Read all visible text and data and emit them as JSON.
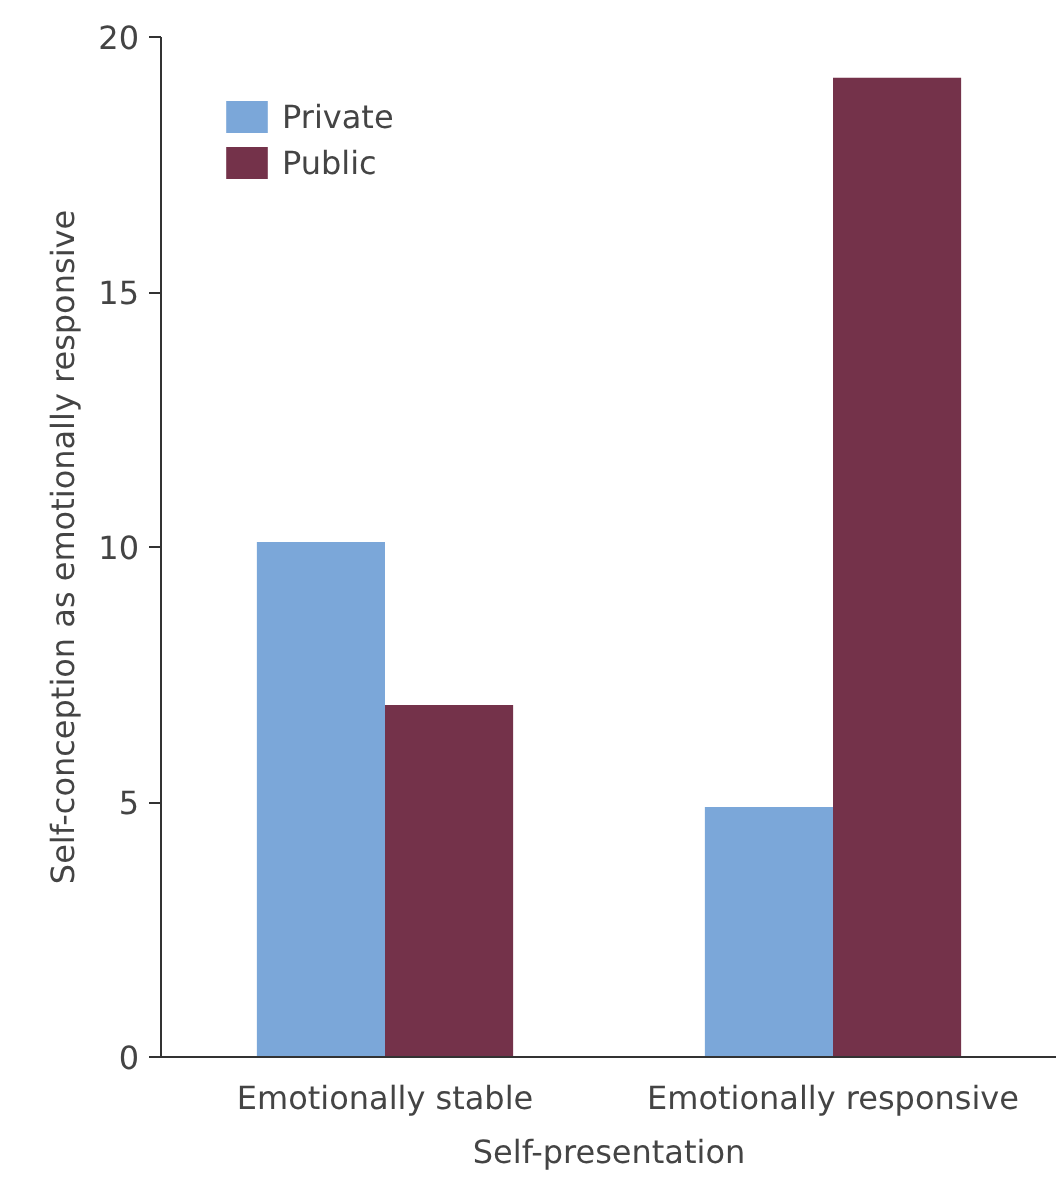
{
  "chart_data": {
    "type": "bar",
    "xlabel": "Self-presentation",
    "ylabel": "Self-conception as emotionally responsive",
    "categories": [
      "Emotionally stable",
      "Emotionally responsive"
    ],
    "series": [
      {
        "name": "Private",
        "color": "#7ba7d9",
        "values": [
          10.1,
          4.9
        ]
      },
      {
        "name": "Public",
        "color": "#74324a",
        "values": [
          6.9,
          19.2
        ]
      }
    ],
    "ylim": [
      0,
      20
    ],
    "yticks": [
      0,
      5,
      10,
      15,
      20
    ],
    "grid": false,
    "legend": "top left"
  }
}
